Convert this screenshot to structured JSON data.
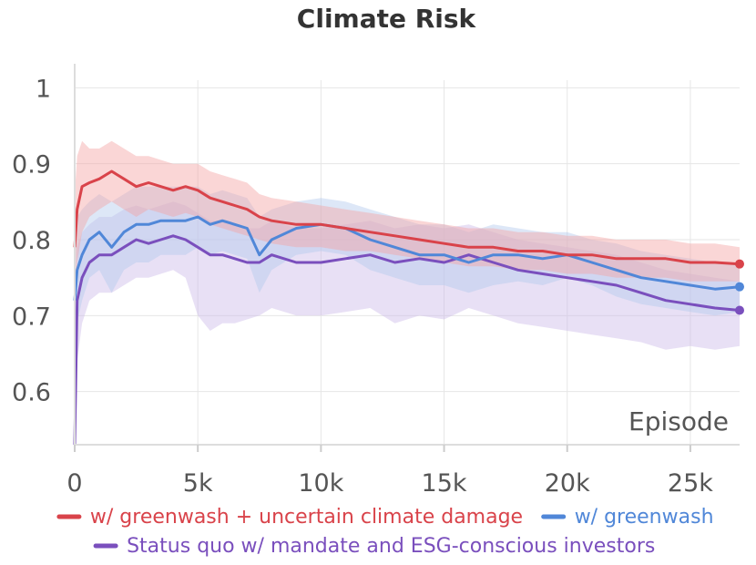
{
  "chart_data": {
    "type": "line",
    "title": "Climate Risk",
    "xlabel": "Episode",
    "ylabel": "",
    "xlim": [
      0,
      27000
    ],
    "ylim": [
      0.53,
      1.01
    ],
    "x_ticks": [
      0,
      5000,
      10000,
      15000,
      20000,
      25000
    ],
    "x_tick_labels": [
      "0",
      "5k",
      "10k",
      "15k",
      "20k",
      "25k"
    ],
    "y_ticks": [
      0.6,
      0.7,
      0.8,
      0.9,
      1.0
    ],
    "y_tick_labels": [
      "0.6",
      "0.7",
      "0.8",
      "0.9",
      "1"
    ],
    "grid": true,
    "legend_position": "bottom",
    "series": [
      {
        "name": "w/ greenwash + uncertain climate damage",
        "color": "#d9434a",
        "band_color": "#f4a3a3",
        "x": [
          0,
          100,
          300,
          600,
          1000,
          1500,
          2000,
          2500,
          3000,
          3500,
          4000,
          4500,
          5000,
          5500,
          6000,
          6500,
          7000,
          7500,
          8000,
          9000,
          10000,
          11000,
          12000,
          13000,
          14000,
          15000,
          16000,
          17000,
          18000,
          19000,
          20000,
          21000,
          22000,
          23000,
          24000,
          25000,
          26000,
          27000
        ],
        "values": [
          0.79,
          0.84,
          0.87,
          0.875,
          0.88,
          0.89,
          0.88,
          0.87,
          0.875,
          0.87,
          0.865,
          0.87,
          0.865,
          0.855,
          0.85,
          0.845,
          0.84,
          0.83,
          0.825,
          0.82,
          0.82,
          0.815,
          0.81,
          0.805,
          0.8,
          0.795,
          0.79,
          0.79,
          0.785,
          0.785,
          0.78,
          0.78,
          0.775,
          0.775,
          0.775,
          0.77,
          0.77,
          0.768
        ],
        "upper": [
          0.86,
          0.91,
          0.93,
          0.92,
          0.92,
          0.93,
          0.92,
          0.91,
          0.91,
          0.905,
          0.9,
          0.9,
          0.9,
          0.89,
          0.885,
          0.88,
          0.875,
          0.86,
          0.855,
          0.85,
          0.845,
          0.84,
          0.835,
          0.83,
          0.825,
          0.82,
          0.815,
          0.815,
          0.81,
          0.81,
          0.805,
          0.805,
          0.8,
          0.8,
          0.8,
          0.795,
          0.795,
          0.79
        ],
        "lower": [
          0.72,
          0.77,
          0.81,
          0.83,
          0.84,
          0.85,
          0.84,
          0.83,
          0.84,
          0.835,
          0.83,
          0.835,
          0.83,
          0.82,
          0.815,
          0.81,
          0.805,
          0.8,
          0.795,
          0.79,
          0.79,
          0.785,
          0.785,
          0.78,
          0.775,
          0.77,
          0.765,
          0.765,
          0.76,
          0.76,
          0.755,
          0.755,
          0.75,
          0.75,
          0.75,
          0.745,
          0.745,
          0.745
        ]
      },
      {
        "name": "w/ greenwash",
        "color": "#5087d8",
        "band_color": "#b3c9ee",
        "x": [
          0,
          100,
          300,
          600,
          1000,
          1500,
          2000,
          2500,
          3000,
          3500,
          4000,
          4500,
          5000,
          5500,
          6000,
          6500,
          7000,
          7500,
          8000,
          9000,
          10000,
          11000,
          12000,
          13000,
          14000,
          15000,
          16000,
          17000,
          18000,
          19000,
          20000,
          21000,
          22000,
          23000,
          24000,
          25000,
          26000,
          27000
        ],
        "values": [
          0.72,
          0.76,
          0.78,
          0.8,
          0.81,
          0.79,
          0.81,
          0.82,
          0.82,
          0.825,
          0.825,
          0.825,
          0.83,
          0.82,
          0.825,
          0.82,
          0.815,
          0.78,
          0.8,
          0.815,
          0.82,
          0.815,
          0.8,
          0.79,
          0.78,
          0.78,
          0.77,
          0.78,
          0.78,
          0.775,
          0.78,
          0.77,
          0.76,
          0.75,
          0.745,
          0.74,
          0.735,
          0.738
        ],
        "upper": [
          0.8,
          0.83,
          0.84,
          0.85,
          0.86,
          0.85,
          0.86,
          0.87,
          0.87,
          0.87,
          0.87,
          0.87,
          0.87,
          0.86,
          0.865,
          0.86,
          0.855,
          0.83,
          0.84,
          0.85,
          0.855,
          0.85,
          0.84,
          0.83,
          0.82,
          0.82,
          0.81,
          0.82,
          0.815,
          0.81,
          0.81,
          0.8,
          0.795,
          0.785,
          0.78,
          0.775,
          0.77,
          0.77
        ],
        "lower": [
          0.64,
          0.69,
          0.72,
          0.75,
          0.76,
          0.73,
          0.76,
          0.77,
          0.77,
          0.78,
          0.78,
          0.78,
          0.79,
          0.78,
          0.785,
          0.78,
          0.775,
          0.73,
          0.76,
          0.78,
          0.785,
          0.78,
          0.76,
          0.75,
          0.74,
          0.74,
          0.73,
          0.74,
          0.745,
          0.74,
          0.75,
          0.74,
          0.725,
          0.715,
          0.71,
          0.705,
          0.7,
          0.705
        ]
      },
      {
        "name": "Status quo w/ mandate and ESG-conscious investors",
        "color": "#7a4fbd",
        "band_color": "#cbbbe8",
        "x": [
          0,
          100,
          300,
          600,
          1000,
          1500,
          2000,
          2500,
          3000,
          3500,
          4000,
          4500,
          5000,
          5500,
          6000,
          6500,
          7000,
          7500,
          8000,
          9000,
          10000,
          11000,
          12000,
          13000,
          14000,
          15000,
          16000,
          17000,
          18000,
          19000,
          20000,
          21000,
          22000,
          23000,
          24000,
          25000,
          26000,
          27000
        ],
        "values": [
          0.53,
          0.72,
          0.75,
          0.77,
          0.78,
          0.78,
          0.79,
          0.8,
          0.795,
          0.8,
          0.805,
          0.8,
          0.79,
          0.78,
          0.78,
          0.775,
          0.77,
          0.77,
          0.78,
          0.77,
          0.77,
          0.775,
          0.78,
          0.77,
          0.775,
          0.77,
          0.78,
          0.77,
          0.76,
          0.755,
          0.75,
          0.745,
          0.74,
          0.73,
          0.72,
          0.715,
          0.71,
          0.707
        ],
        "upper": [
          0.6,
          0.79,
          0.81,
          0.82,
          0.83,
          0.83,
          0.84,
          0.845,
          0.84,
          0.845,
          0.85,
          0.845,
          0.835,
          0.825,
          0.825,
          0.82,
          0.815,
          0.815,
          0.825,
          0.815,
          0.815,
          0.82,
          0.825,
          0.815,
          0.82,
          0.815,
          0.82,
          0.81,
          0.8,
          0.795,
          0.79,
          0.785,
          0.78,
          0.77,
          0.76,
          0.755,
          0.75,
          0.745
        ],
        "lower": [
          0.53,
          0.64,
          0.69,
          0.72,
          0.73,
          0.73,
          0.74,
          0.75,
          0.75,
          0.755,
          0.76,
          0.75,
          0.7,
          0.68,
          0.69,
          0.69,
          0.695,
          0.7,
          0.71,
          0.7,
          0.7,
          0.705,
          0.71,
          0.69,
          0.7,
          0.695,
          0.71,
          0.7,
          0.69,
          0.685,
          0.68,
          0.675,
          0.67,
          0.665,
          0.655,
          0.66,
          0.655,
          0.66
        ]
      }
    ]
  }
}
